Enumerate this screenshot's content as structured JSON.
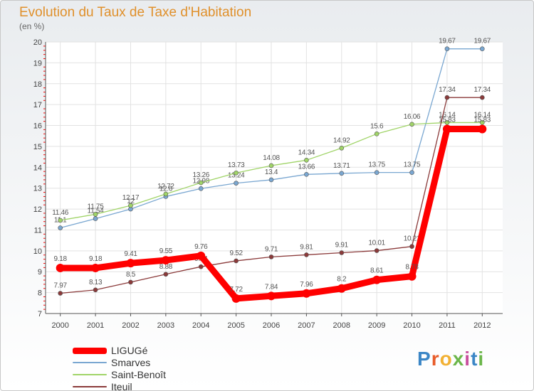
{
  "title": "Evolution du Taux de Taxe d'Habitation",
  "unit_label": "(en %)",
  "brand": {
    "letters": [
      "P",
      "r",
      "o",
      "x",
      "i",
      "t",
      "i"
    ],
    "colors": [
      "#3b86c6",
      "#e85c2a",
      "#f2b134",
      "#6bb64a",
      "#c94f9e",
      "#3b86c6",
      "#6bb64a"
    ]
  },
  "chart_data": {
    "type": "line",
    "title": "Evolution du Taux de Taxe d'Habitation",
    "ylabel": "(en %)",
    "xlabel": "",
    "x": [
      "2000",
      "2001",
      "2002",
      "2003",
      "2004",
      "2005",
      "2006",
      "2007",
      "2008",
      "2009",
      "2010",
      "2011",
      "2012"
    ],
    "ylim": [
      7,
      20
    ],
    "yticks": [
      "7",
      "8",
      "9",
      "10",
      "11",
      "12",
      "13",
      "14",
      "15",
      "16",
      "17",
      "18",
      "19",
      "20"
    ],
    "grid": true,
    "legend_position": "bottom-left",
    "series": [
      {
        "name": "LIGUGé",
        "color": "#ff0000",
        "thick": true,
        "values": [
          9.18,
          9.18,
          9.41,
          9.55,
          9.76,
          7.72,
          7.84,
          7.96,
          8.2,
          8.61,
          8.78,
          15.83,
          15.83
        ],
        "labels": [
          "9.18",
          "9.18",
          "9.41",
          "9.55",
          "9.76",
          "7.72",
          "7.84",
          "7.96",
          "8.2",
          "8.61",
          "8.78",
          "15.83",
          "15.83"
        ]
      },
      {
        "name": "Smarves",
        "color": "#7aa7d1",
        "thick": false,
        "values": [
          11.1,
          11.54,
          12.0,
          12.6,
          12.98,
          13.24,
          13.4,
          13.66,
          13.71,
          13.75,
          13.75,
          19.67,
          19.67
        ],
        "labels": [
          "11.1",
          "11.54",
          "12",
          "12.6",
          "12.98",
          "13.24",
          "13.4",
          "13.66",
          "13.71",
          "13.75",
          "13.75",
          "19.67",
          "19.67"
        ]
      },
      {
        "name": "Saint-Benoît",
        "color": "#a0d468",
        "thick": false,
        "values": [
          11.46,
          11.75,
          12.17,
          12.72,
          13.26,
          13.73,
          14.08,
          14.34,
          14.92,
          15.6,
          16.06,
          16.14,
          16.14
        ],
        "labels": [
          "11.46",
          "11.75",
          "12.17",
          "12.72",
          "13.26",
          "13.73",
          "14.08",
          "14.34",
          "14.92",
          "15.6",
          "16.06",
          "16.14",
          "16.14"
        ]
      },
      {
        "name": "Iteuil",
        "color": "#8b3a3a",
        "thick": false,
        "values": [
          7.97,
          8.13,
          8.5,
          8.88,
          9.24,
          9.52,
          9.71,
          9.81,
          9.91,
          10.01,
          10.21,
          17.34,
          17.34
        ],
        "labels": [
          "7.97",
          "8.13",
          "8.5",
          "8.88",
          "9.24",
          "9.52",
          "9.71",
          "9.81",
          "9.91",
          "10.01",
          "10.21",
          "17.34",
          "17.34"
        ]
      }
    ]
  }
}
